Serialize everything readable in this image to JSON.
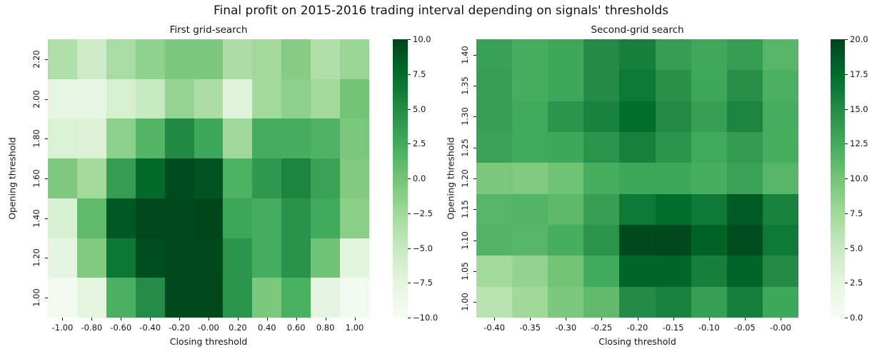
{
  "figure": {
    "suptitle": "Final profit on 2015-2016 trading interval depending on signals' thresholds"
  },
  "colormap": {
    "name": "Greens",
    "stops": [
      [
        0.0,
        "#f7fcf5"
      ],
      [
        0.125,
        "#e5f5e0"
      ],
      [
        0.25,
        "#c7e9c0"
      ],
      [
        0.375,
        "#a1d99b"
      ],
      [
        0.5,
        "#74c476"
      ],
      [
        0.625,
        "#41ab5d"
      ],
      [
        0.75,
        "#238b45"
      ],
      [
        0.875,
        "#006d2c"
      ],
      [
        1.0,
        "#00441b"
      ]
    ],
    "tick_color": "#141414"
  },
  "chart_data": [
    {
      "type": "heatmap",
      "title": "First grid-search",
      "xlabel": "Closing threshold",
      "ylabel": "Opening threshold",
      "x_ticks": [
        "-1.00",
        "-0.80",
        "-0.60",
        "-0.40",
        "-0.20",
        "-0.00",
        "0.20",
        "0.40",
        "0.60",
        "0.80",
        "1.00"
      ],
      "y_ticks": [
        "2.20",
        "2.00",
        "1.80",
        "1.60",
        "1.40",
        "1.20",
        "1.00"
      ],
      "vmin": -10,
      "vmax": 10,
      "colorbar_ticks": [
        "10.0",
        "7.5",
        "5.0",
        "2.5",
        "0.0",
        "−2.5",
        "−5.0",
        "−7.5",
        "−10.0"
      ],
      "values": [
        [
          -3.5,
          -5.5,
          -3.0,
          -1.6,
          -0.5,
          -0.5,
          -3.2,
          -2.6,
          -1.0,
          -3.5,
          -2.1
        ],
        [
          -7.8,
          -7.8,
          -6.2,
          -5.0,
          -1.8,
          -3.2,
          -7.0,
          -2.6,
          -1.4,
          -2.6,
          0.0
        ],
        [
          -6.6,
          -6.8,
          -1.4,
          1.6,
          5.2,
          2.8,
          -2.4,
          2.4,
          2.3,
          1.8,
          -0.4
        ],
        [
          -0.6,
          -2.6,
          3.6,
          7.7,
          9.6,
          9.0,
          1.9,
          4.0,
          5.6,
          3.2,
          -0.7
        ],
        [
          -6.4,
          1.0,
          8.7,
          9.8,
          9.8,
          9.9,
          2.9,
          2.3,
          4.4,
          2.5,
          -1.2
        ],
        [
          -7.6,
          -0.7,
          6.6,
          9.4,
          9.8,
          9.7,
          4.3,
          2.3,
          4.4,
          0.2,
          -7.2
        ],
        [
          -9.4,
          -7.4,
          2.0,
          4.9,
          9.8,
          9.8,
          4.3,
          -0.4,
          2.1,
          -7.6,
          -9.2
        ]
      ]
    },
    {
      "type": "heatmap",
      "title": "Second-grid search",
      "xlabel": "Closing threshold",
      "ylabel": "Opening threshold",
      "x_ticks": [
        "-0.40",
        "-0.35",
        "-0.30",
        "-0.25",
        "-0.20",
        "-0.15",
        "-0.10",
        "-0.05",
        "-0.00"
      ],
      "y_ticks": [
        "1.40",
        "1.35",
        "1.30",
        "1.25",
        "1.20",
        "1.15",
        "1.10",
        "1.05",
        "1.00"
      ],
      "vmin": 0,
      "vmax": 20,
      "colorbar_ticks": [
        "20.0",
        "17.5",
        "15.0",
        "12.5",
        "10.0",
        "7.5",
        "5.0",
        "2.5",
        "0.0"
      ],
      "values": [
        [
          13.3,
          12.2,
          12.8,
          15.0,
          16.0,
          13.5,
          12.7,
          13.5,
          11.4
        ],
        [
          13.4,
          12.2,
          12.8,
          15.0,
          16.5,
          14.6,
          12.8,
          14.7,
          12.0
        ],
        [
          13.4,
          12.6,
          14.3,
          15.7,
          17.4,
          15.0,
          13.4,
          15.6,
          12.3
        ],
        [
          13.2,
          12.6,
          12.8,
          14.3,
          15.9,
          14.3,
          12.6,
          13.7,
          12.2
        ],
        [
          9.6,
          9.3,
          10.2,
          12.2,
          12.8,
          12.8,
          12.2,
          13.2,
          11.4
        ],
        [
          11.4,
          11.6,
          11.1,
          13.4,
          16.5,
          17.5,
          16.4,
          18.6,
          15.7
        ],
        [
          11.6,
          11.4,
          12.2,
          14.3,
          19.7,
          19.8,
          18.2,
          19.5,
          16.4
        ],
        [
          7.4,
          8.3,
          10.0,
          12.5,
          18.0,
          18.0,
          16.0,
          18.0,
          15.0
        ],
        [
          6.0,
          7.5,
          9.6,
          10.9,
          15.0,
          15.8,
          13.4,
          16.1,
          12.8
        ]
      ]
    }
  ]
}
